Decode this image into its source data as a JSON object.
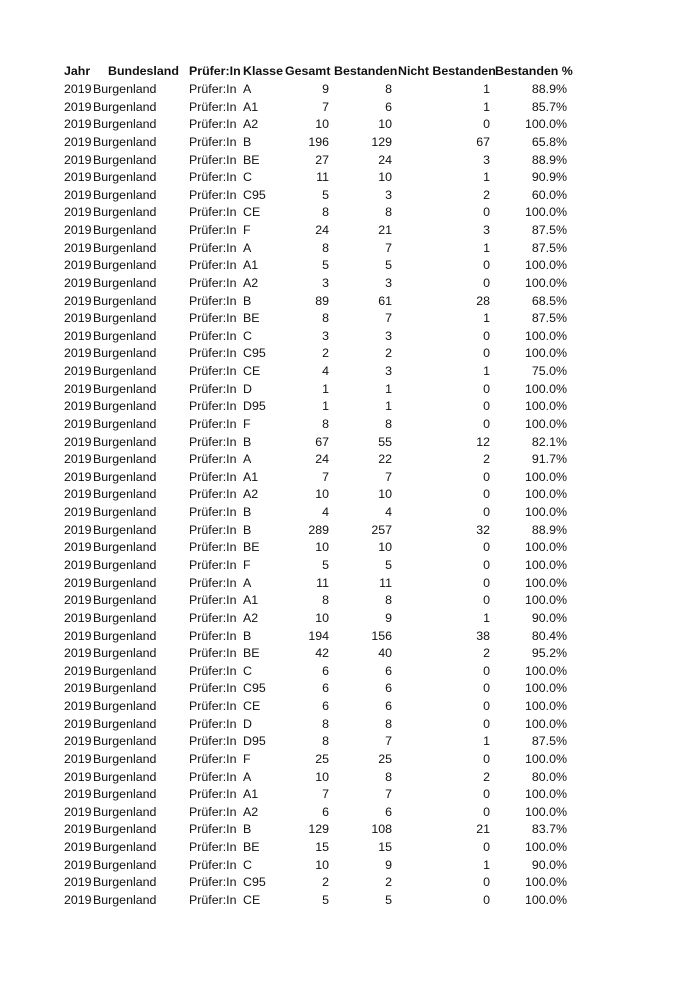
{
  "headers": [
    "Jahr",
    "Bundesland",
    "Prüfer:In",
    "Klasse",
    "Gesamt",
    "Bestanden",
    "Nicht Bestanden",
    "Bestanden %"
  ],
  "rows": [
    [
      "2019",
      "Burgenland",
      "Prüfer:In",
      "A",
      "9",
      "8",
      "1",
      "88.9%"
    ],
    [
      "2019",
      "Burgenland",
      "Prüfer:In",
      "A1",
      "7",
      "6",
      "1",
      "85.7%"
    ],
    [
      "2019",
      "Burgenland",
      "Prüfer:In",
      "A2",
      "10",
      "10",
      "0",
      "100.0%"
    ],
    [
      "2019",
      "Burgenland",
      "Prüfer:In",
      "B",
      "196",
      "129",
      "67",
      "65.8%"
    ],
    [
      "2019",
      "Burgenland",
      "Prüfer:In",
      "BE",
      "27",
      "24",
      "3",
      "88.9%"
    ],
    [
      "2019",
      "Burgenland",
      "Prüfer:In",
      "C",
      "11",
      "10",
      "1",
      "90.9%"
    ],
    [
      "2019",
      "Burgenland",
      "Prüfer:In",
      "C95",
      "5",
      "3",
      "2",
      "60.0%"
    ],
    [
      "2019",
      "Burgenland",
      "Prüfer:In",
      "CE",
      "8",
      "8",
      "0",
      "100.0%"
    ],
    [
      "2019",
      "Burgenland",
      "Prüfer:In",
      "F",
      "24",
      "21",
      "3",
      "87.5%"
    ],
    [
      "2019",
      "Burgenland",
      "Prüfer:In",
      "A",
      "8",
      "7",
      "1",
      "87.5%"
    ],
    [
      "2019",
      "Burgenland",
      "Prüfer:In",
      "A1",
      "5",
      "5",
      "0",
      "100.0%"
    ],
    [
      "2019",
      "Burgenland",
      "Prüfer:In",
      "A2",
      "3",
      "3",
      "0",
      "100.0%"
    ],
    [
      "2019",
      "Burgenland",
      "Prüfer:In",
      "B",
      "89",
      "61",
      "28",
      "68.5%"
    ],
    [
      "2019",
      "Burgenland",
      "Prüfer:In",
      "BE",
      "8",
      "7",
      "1",
      "87.5%"
    ],
    [
      "2019",
      "Burgenland",
      "Prüfer:In",
      "C",
      "3",
      "3",
      "0",
      "100.0%"
    ],
    [
      "2019",
      "Burgenland",
      "Prüfer:In",
      "C95",
      "2",
      "2",
      "0",
      "100.0%"
    ],
    [
      "2019",
      "Burgenland",
      "Prüfer:In",
      "CE",
      "4",
      "3",
      "1",
      "75.0%"
    ],
    [
      "2019",
      "Burgenland",
      "Prüfer:In",
      "D",
      "1",
      "1",
      "0",
      "100.0%"
    ],
    [
      "2019",
      "Burgenland",
      "Prüfer:In",
      "D95",
      "1",
      "1",
      "0",
      "100.0%"
    ],
    [
      "2019",
      "Burgenland",
      "Prüfer:In",
      "F",
      "8",
      "8",
      "0",
      "100.0%"
    ],
    [
      "2019",
      "Burgenland",
      "Prüfer:In",
      "B",
      "67",
      "55",
      "12",
      "82.1%"
    ],
    [
      "2019",
      "Burgenland",
      "Prüfer:In",
      "A",
      "24",
      "22",
      "2",
      "91.7%"
    ],
    [
      "2019",
      "Burgenland",
      "Prüfer:In",
      "A1",
      "7",
      "7",
      "0",
      "100.0%"
    ],
    [
      "2019",
      "Burgenland",
      "Prüfer:In",
      "A2",
      "10",
      "10",
      "0",
      "100.0%"
    ],
    [
      "2019",
      "Burgenland",
      "Prüfer:In",
      "B",
      "4",
      "4",
      "0",
      "100.0%"
    ],
    [
      "2019",
      "Burgenland",
      "Prüfer:In",
      "B",
      "289",
      "257",
      "32",
      "88.9%"
    ],
    [
      "2019",
      "Burgenland",
      "Prüfer:In",
      "BE",
      "10",
      "10",
      "0",
      "100.0%"
    ],
    [
      "2019",
      "Burgenland",
      "Prüfer:In",
      "F",
      "5",
      "5",
      "0",
      "100.0%"
    ],
    [
      "2019",
      "Burgenland",
      "Prüfer:In",
      "A",
      "11",
      "11",
      "0",
      "100.0%"
    ],
    [
      "2019",
      "Burgenland",
      "Prüfer:In",
      "A1",
      "8",
      "8",
      "0",
      "100.0%"
    ],
    [
      "2019",
      "Burgenland",
      "Prüfer:In",
      "A2",
      "10",
      "9",
      "1",
      "90.0%"
    ],
    [
      "2019",
      "Burgenland",
      "Prüfer:In",
      "B",
      "194",
      "156",
      "38",
      "80.4%"
    ],
    [
      "2019",
      "Burgenland",
      "Prüfer:In",
      "BE",
      "42",
      "40",
      "2",
      "95.2%"
    ],
    [
      "2019",
      "Burgenland",
      "Prüfer:In",
      "C",
      "6",
      "6",
      "0",
      "100.0%"
    ],
    [
      "2019",
      "Burgenland",
      "Prüfer:In",
      "C95",
      "6",
      "6",
      "0",
      "100.0%"
    ],
    [
      "2019",
      "Burgenland",
      "Prüfer:In",
      "CE",
      "6",
      "6",
      "0",
      "100.0%"
    ],
    [
      "2019",
      "Burgenland",
      "Prüfer:In",
      "D",
      "8",
      "8",
      "0",
      "100.0%"
    ],
    [
      "2019",
      "Burgenland",
      "Prüfer:In",
      "D95",
      "8",
      "7",
      "1",
      "87.5%"
    ],
    [
      "2019",
      "Burgenland",
      "Prüfer:In",
      "F",
      "25",
      "25",
      "0",
      "100.0%"
    ],
    [
      "2019",
      "Burgenland",
      "Prüfer:In",
      "A",
      "10",
      "8",
      "2",
      "80.0%"
    ],
    [
      "2019",
      "Burgenland",
      "Prüfer:In",
      "A1",
      "7",
      "7",
      "0",
      "100.0%"
    ],
    [
      "2019",
      "Burgenland",
      "Prüfer:In",
      "A2",
      "6",
      "6",
      "0",
      "100.0%"
    ],
    [
      "2019",
      "Burgenland",
      "Prüfer:In",
      "B",
      "129",
      "108",
      "21",
      "83.7%"
    ],
    [
      "2019",
      "Burgenland",
      "Prüfer:In",
      "BE",
      "15",
      "15",
      "0",
      "100.0%"
    ],
    [
      "2019",
      "Burgenland",
      "Prüfer:In",
      "C",
      "10",
      "9",
      "1",
      "90.0%"
    ],
    [
      "2019",
      "Burgenland",
      "Prüfer:In",
      "C95",
      "2",
      "2",
      "0",
      "100.0%"
    ],
    [
      "2019",
      "Burgenland",
      "Prüfer:In",
      "CE",
      "5",
      "5",
      "0",
      "100.0%"
    ]
  ]
}
